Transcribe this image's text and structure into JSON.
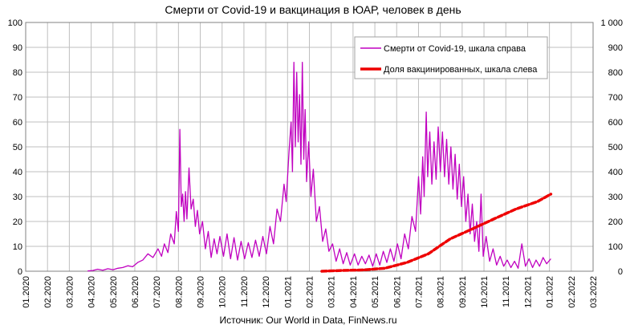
{
  "chart_data": {
    "type": "line",
    "title": "Смерти от Covid-19 и вакцинация в ЮАР, человек в день",
    "source": "Источник: Our World in Data, FinNews.ru",
    "x_ticks": [
      "01.2020",
      "02.2020",
      "03.2020",
      "04.2020",
      "05.2020",
      "06.2020",
      "07.2020",
      "08.2020",
      "09.2020",
      "10.2020",
      "11.2020",
      "12.2020",
      "01.2021",
      "02.2021",
      "03.2021",
      "04.2021",
      "05.2021",
      "06.2021",
      "07.2021",
      "08.2021",
      "09.2021",
      "10.2021",
      "11.2021",
      "12.2021",
      "01.2022",
      "02.2022",
      "03.2022"
    ],
    "y_left": {
      "min": 0,
      "max": 100,
      "step": 10,
      "ticks": [
        "0",
        "10",
        "20",
        "30",
        "40",
        "50",
        "60",
        "70",
        "80",
        "90",
        "100"
      ]
    },
    "y_right": {
      "min": 0,
      "max": 1000,
      "step": 100,
      "ticks": [
        "0",
        "100",
        "200",
        "300",
        "400",
        "500",
        "600",
        "700",
        "800",
        "900",
        "1 000"
      ]
    },
    "grid": true,
    "legend_position": "top-right",
    "colors": {
      "deaths": "#c000c0",
      "vaccinated": "#ee0000",
      "grid": "#bfbfbf"
    },
    "series": [
      {
        "name": "Смерти от Covid-19, шкала справа",
        "axis": "right",
        "style": "solid",
        "points": [
          [
            "2020-03-27",
            1
          ],
          [
            "2020-04-03",
            3
          ],
          [
            "2020-04-10",
            8
          ],
          [
            "2020-04-17",
            4
          ],
          [
            "2020-04-24",
            10
          ],
          [
            "2020-05-01",
            6
          ],
          [
            "2020-05-08",
            12
          ],
          [
            "2020-05-15",
            15
          ],
          [
            "2020-05-22",
            22
          ],
          [
            "2020-05-29",
            18
          ],
          [
            "2020-06-05",
            35
          ],
          [
            "2020-06-12",
            45
          ],
          [
            "2020-06-19",
            70
          ],
          [
            "2020-06-26",
            55
          ],
          [
            "2020-07-03",
            90
          ],
          [
            "2020-07-08",
            60
          ],
          [
            "2020-07-12",
            110
          ],
          [
            "2020-07-17",
            75
          ],
          [
            "2020-07-21",
            150
          ],
          [
            "2020-07-26",
            110
          ],
          [
            "2020-07-29",
            240
          ],
          [
            "2020-08-01",
            160
          ],
          [
            "2020-08-03",
            570
          ],
          [
            "2020-08-05",
            260
          ],
          [
            "2020-08-07",
            310
          ],
          [
            "2020-08-09",
            200
          ],
          [
            "2020-08-11",
            320
          ],
          [
            "2020-08-13",
            210
          ],
          [
            "2020-08-16",
            415
          ],
          [
            "2020-08-19",
            250
          ],
          [
            "2020-08-22",
            290
          ],
          [
            "2020-08-25",
            180
          ],
          [
            "2020-08-28",
            245
          ],
          [
            "2020-08-31",
            150
          ],
          [
            "2020-09-04",
            200
          ],
          [
            "2020-09-08",
            90
          ],
          [
            "2020-09-12",
            160
          ],
          [
            "2020-09-16",
            55
          ],
          [
            "2020-09-20",
            130
          ],
          [
            "2020-09-24",
            70
          ],
          [
            "2020-09-28",
            140
          ],
          [
            "2020-10-03",
            60
          ],
          [
            "2020-10-08",
            150
          ],
          [
            "2020-10-13",
            50
          ],
          [
            "2020-10-18",
            135
          ],
          [
            "2020-10-23",
            45
          ],
          [
            "2020-10-28",
            120
          ],
          [
            "2020-11-02",
            50
          ],
          [
            "2020-11-07",
            115
          ],
          [
            "2020-11-12",
            55
          ],
          [
            "2020-11-17",
            125
          ],
          [
            "2020-11-22",
            60
          ],
          [
            "2020-11-27",
            140
          ],
          [
            "2020-12-02",
            70
          ],
          [
            "2020-12-07",
            180
          ],
          [
            "2020-12-12",
            110
          ],
          [
            "2020-12-17",
            250
          ],
          [
            "2020-12-22",
            200
          ],
          [
            "2020-12-27",
            350
          ],
          [
            "2020-12-30",
            280
          ],
          [
            "2021-01-03",
            480
          ],
          [
            "2021-01-06",
            600
          ],
          [
            "2021-01-08",
            400
          ],
          [
            "2021-01-10",
            840
          ],
          [
            "2021-01-12",
            500
          ],
          [
            "2021-01-14",
            800
          ],
          [
            "2021-01-16",
            520
          ],
          [
            "2021-01-18",
            710
          ],
          [
            "2021-01-20",
            430
          ],
          [
            "2021-01-22",
            840
          ],
          [
            "2021-01-24",
            450
          ],
          [
            "2021-01-26",
            650
          ],
          [
            "2021-01-28",
            360
          ],
          [
            "2021-01-31",
            520
          ],
          [
            "2021-02-03",
            300
          ],
          [
            "2021-02-06",
            410
          ],
          [
            "2021-02-10",
            200
          ],
          [
            "2021-02-14",
            260
          ],
          [
            "2021-02-18",
            120
          ],
          [
            "2021-02-22",
            170
          ],
          [
            "2021-02-26",
            80
          ],
          [
            "2021-03-03",
            110
          ],
          [
            "2021-03-08",
            40
          ],
          [
            "2021-03-13",
            90
          ],
          [
            "2021-03-18",
            30
          ],
          [
            "2021-03-23",
            75
          ],
          [
            "2021-03-28",
            25
          ],
          [
            "2021-04-03",
            70
          ],
          [
            "2021-04-08",
            25
          ],
          [
            "2021-04-13",
            60
          ],
          [
            "2021-04-18",
            30
          ],
          [
            "2021-04-23",
            65
          ],
          [
            "2021-04-28",
            20
          ],
          [
            "2021-05-03",
            70
          ],
          [
            "2021-05-08",
            25
          ],
          [
            "2021-05-13",
            80
          ],
          [
            "2021-05-18",
            35
          ],
          [
            "2021-05-23",
            90
          ],
          [
            "2021-05-28",
            40
          ],
          [
            "2021-06-02",
            110
          ],
          [
            "2021-06-07",
            50
          ],
          [
            "2021-06-12",
            150
          ],
          [
            "2021-06-17",
            90
          ],
          [
            "2021-06-22",
            220
          ],
          [
            "2021-06-27",
            160
          ],
          [
            "2021-07-01",
            380
          ],
          [
            "2021-07-04",
            230
          ],
          [
            "2021-07-07",
            460
          ],
          [
            "2021-07-09",
            300
          ],
          [
            "2021-07-12",
            640
          ],
          [
            "2021-07-14",
            380
          ],
          [
            "2021-07-17",
            560
          ],
          [
            "2021-07-20",
            350
          ],
          [
            "2021-07-23",
            520
          ],
          [
            "2021-07-26",
            370
          ],
          [
            "2021-07-29",
            580
          ],
          [
            "2021-08-01",
            400
          ],
          [
            "2021-08-04",
            560
          ],
          [
            "2021-08-07",
            380
          ],
          [
            "2021-08-10",
            530
          ],
          [
            "2021-08-13",
            350
          ],
          [
            "2021-08-16",
            500
          ],
          [
            "2021-08-19",
            330
          ],
          [
            "2021-08-22",
            470
          ],
          [
            "2021-08-25",
            290
          ],
          [
            "2021-08-28",
            430
          ],
          [
            "2021-08-31",
            260
          ],
          [
            "2021-09-03",
            380
          ],
          [
            "2021-09-06",
            200
          ],
          [
            "2021-09-09",
            310
          ],
          [
            "2021-09-12",
            150
          ],
          [
            "2021-09-15",
            270
          ],
          [
            "2021-09-18",
            120
          ],
          [
            "2021-09-21",
            200
          ],
          [
            "2021-09-24",
            80
          ],
          [
            "2021-09-27",
            310
          ],
          [
            "2021-09-30",
            60
          ],
          [
            "2021-10-04",
            140
          ],
          [
            "2021-10-09",
            40
          ],
          [
            "2021-10-14",
            90
          ],
          [
            "2021-10-19",
            25
          ],
          [
            "2021-10-24",
            60
          ],
          [
            "2021-10-29",
            20
          ],
          [
            "2021-11-03",
            45
          ],
          [
            "2021-11-08",
            15
          ],
          [
            "2021-11-13",
            40
          ],
          [
            "2021-11-18",
            12
          ],
          [
            "2021-11-23",
            110
          ],
          [
            "2021-11-28",
            20
          ],
          [
            "2021-12-03",
            50
          ],
          [
            "2021-12-08",
            15
          ],
          [
            "2021-12-13",
            45
          ],
          [
            "2021-12-18",
            20
          ],
          [
            "2021-12-23",
            55
          ],
          [
            "2021-12-28",
            30
          ],
          [
            "2022-01-03",
            50
          ]
        ]
      },
      {
        "name": "Доля вакцинированных, шкала слева",
        "axis": "left",
        "style": "dashed",
        "points": [
          [
            "2021-02-17",
            0
          ],
          [
            "2021-03-15",
            0.3
          ],
          [
            "2021-04-15",
            0.5
          ],
          [
            "2021-05-15",
            1.2
          ],
          [
            "2021-06-15",
            3.5
          ],
          [
            "2021-07-15",
            7
          ],
          [
            "2021-08-15",
            13
          ],
          [
            "2021-09-15",
            17
          ],
          [
            "2021-10-15",
            21
          ],
          [
            "2021-11-15",
            25
          ],
          [
            "2021-12-15",
            28
          ],
          [
            "2022-01-03",
            31
          ]
        ]
      }
    ]
  }
}
